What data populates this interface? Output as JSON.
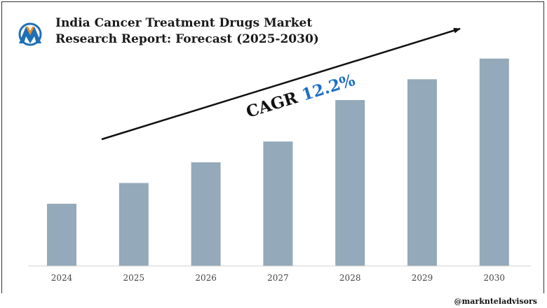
{
  "header": {
    "title_line1": "India Cancer Treatment Drugs Market",
    "title_line2": "Research Report: Forecast (2025-2030)"
  },
  "logo": {
    "icon": "markntel-logo",
    "colors": [
      "#1f6fb5",
      "#f08a24"
    ]
  },
  "annotation": {
    "prefix": "CAGR",
    "value": "12.2%",
    "prefix_color": "#111111",
    "value_color": "#1a6fc4"
  },
  "footer": {
    "watermark": "@marknteladvisors"
  },
  "chart_data": {
    "type": "bar",
    "categories": [
      "2024",
      "2025",
      "2026",
      "2027",
      "2028",
      "2029",
      "2030"
    ],
    "values": [
      30,
      40,
      50,
      60,
      80,
      90,
      100
    ],
    "title": "India Cancer Treatment Drugs Market Research Report: Forecast (2025-2030)",
    "xlabel": "",
    "ylabel": "",
    "ylim": [
      0,
      110
    ],
    "bar_color": "#94a9b9",
    "grid": false,
    "legend": "none"
  }
}
